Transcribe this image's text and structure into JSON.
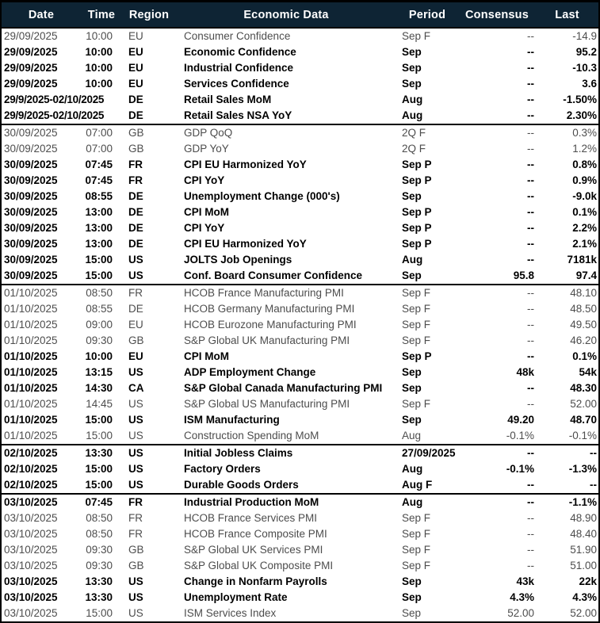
{
  "colors": {
    "header_bg": "#0e2434",
    "header_text": "#ffffff",
    "bold_row_text": "#000000",
    "regular_row_text": "#4d4d4d",
    "border": "#000000"
  },
  "chart_data": {
    "type": "table",
    "columns": [
      "Date",
      "Time",
      "Region",
      "Economic Data",
      "Period",
      "Consensus",
      "Last"
    ],
    "groups": [
      {
        "rows": [
          {
            "date": "29/09/2025",
            "time": "10:00",
            "span": false,
            "region": "EU",
            "event": "Consumer Confidence",
            "period": "Sep F",
            "consensus": "--",
            "last": "-14.9",
            "bold": false
          },
          {
            "date": "29/09/2025",
            "time": "10:00",
            "span": false,
            "region": "EU",
            "event": "Economic Confidence",
            "period": "Sep",
            "consensus": "--",
            "last": "95.2",
            "bold": true
          },
          {
            "date": "29/09/2025",
            "time": "10:00",
            "span": false,
            "region": "EU",
            "event": "Industrial Confidence",
            "period": "Sep",
            "consensus": "--",
            "last": "-10.3",
            "bold": true
          },
          {
            "date": "29/09/2025",
            "time": "10:00",
            "span": false,
            "region": "EU",
            "event": "Services Confidence",
            "period": "Sep",
            "consensus": "--",
            "last": "3.6",
            "bold": true
          },
          {
            "date": "29/9/2025-02/10/2025",
            "time": "",
            "span": true,
            "region": "DE",
            "event": "Retail Sales MoM",
            "period": "Aug",
            "consensus": "--",
            "last": "-1.50%",
            "bold": true
          },
          {
            "date": "29/9/2025-02/10/2025",
            "time": "",
            "span": true,
            "region": "DE",
            "event": "Retail Sales NSA YoY",
            "period": "Aug",
            "consensus": "--",
            "last": "2.30%",
            "bold": true
          }
        ]
      },
      {
        "rows": [
          {
            "date": "30/09/2025",
            "time": "07:00",
            "span": false,
            "region": "GB",
            "event": "GDP QoQ",
            "period": "2Q F",
            "consensus": "--",
            "last": "0.3%",
            "bold": false
          },
          {
            "date": "30/09/2025",
            "time": "07:00",
            "span": false,
            "region": "GB",
            "event": "GDP YoY",
            "period": "2Q F",
            "consensus": "--",
            "last": "1.2%",
            "bold": false
          },
          {
            "date": "30/09/2025",
            "time": "07:45",
            "span": false,
            "region": "FR",
            "event": "CPI EU Harmonized YoY",
            "period": "Sep P",
            "consensus": "--",
            "last": "0.8%",
            "bold": true
          },
          {
            "date": "30/09/2025",
            "time": "07:45",
            "span": false,
            "region": "FR",
            "event": "CPI YoY",
            "period": "Sep P",
            "consensus": "--",
            "last": "0.9%",
            "bold": true
          },
          {
            "date": "30/09/2025",
            "time": "08:55",
            "span": false,
            "region": "DE",
            "event": "Unemployment Change (000's)",
            "period": "Sep",
            "consensus": "--",
            "last": "-9.0k",
            "bold": true
          },
          {
            "date": "30/09/2025",
            "time": "13:00",
            "span": false,
            "region": "DE",
            "event": "CPI MoM",
            "period": "Sep P",
            "consensus": "--",
            "last": "0.1%",
            "bold": true
          },
          {
            "date": "30/09/2025",
            "time": "13:00",
            "span": false,
            "region": "DE",
            "event": "CPI YoY",
            "period": "Sep P",
            "consensus": "--",
            "last": "2.2%",
            "bold": true
          },
          {
            "date": "30/09/2025",
            "time": "13:00",
            "span": false,
            "region": "DE",
            "event": "CPI EU Harmonized YoY",
            "period": "Sep P",
            "consensus": "--",
            "last": "2.1%",
            "bold": true
          },
          {
            "date": "30/09/2025",
            "time": "15:00",
            "span": false,
            "region": "US",
            "event": "JOLTS Job Openings",
            "period": "Aug",
            "consensus": "--",
            "last": "7181k",
            "bold": true
          },
          {
            "date": "30/09/2025",
            "time": "15:00",
            "span": false,
            "region": "US",
            "event": "Conf. Board Consumer Confidence",
            "period": "Sep",
            "consensus": "95.8",
            "last": "97.4",
            "bold": true
          }
        ]
      },
      {
        "rows": [
          {
            "date": "01/10/2025",
            "time": "08:50",
            "span": false,
            "region": "FR",
            "event": "HCOB France Manufacturing PMI",
            "period": "Sep F",
            "consensus": "--",
            "last": "48.10",
            "bold": false
          },
          {
            "date": "01/10/2025",
            "time": "08:55",
            "span": false,
            "region": "DE",
            "event": "HCOB Germany Manufacturing PMI",
            "period": "Sep F",
            "consensus": "--",
            "last": "48.50",
            "bold": false
          },
          {
            "date": "01/10/2025",
            "time": "09:00",
            "span": false,
            "region": "EU",
            "event": "HCOB Eurozone Manufacturing PMI",
            "period": "Sep F",
            "consensus": "--",
            "last": "49.50",
            "bold": false
          },
          {
            "date": "01/10/2025",
            "time": "09:30",
            "span": false,
            "region": "GB",
            "event": "S&P Global UK Manufacturing PMI",
            "period": "Sep F",
            "consensus": "--",
            "last": "46.20",
            "bold": false
          },
          {
            "date": "01/10/2025",
            "time": "10:00",
            "span": false,
            "region": "EU",
            "event": "CPI MoM",
            "period": "Sep P",
            "consensus": "--",
            "last": "0.1%",
            "bold": true
          },
          {
            "date": "01/10/2025",
            "time": "13:15",
            "span": false,
            "region": "US",
            "event": "ADP Employment Change",
            "period": "Sep",
            "consensus": "48k",
            "last": "54k",
            "bold": true
          },
          {
            "date": "01/10/2025",
            "time": "14:30",
            "span": false,
            "region": "CA",
            "event": "S&P Global Canada Manufacturing PMI",
            "period": "Sep",
            "consensus": "--",
            "last": "48.30",
            "bold": true
          },
          {
            "date": "01/10/2025",
            "time": "14:45",
            "span": false,
            "region": "US",
            "event": "S&P Global US Manufacturing PMI",
            "period": "Sep F",
            "consensus": "--",
            "last": "52.00",
            "bold": false
          },
          {
            "date": "01/10/2025",
            "time": "15:00",
            "span": false,
            "region": "US",
            "event": "ISM Manufacturing",
            "period": "Sep",
            "consensus": "49.20",
            "last": "48.70",
            "bold": true
          },
          {
            "date": "01/10/2025",
            "time": "15:00",
            "span": false,
            "region": "US",
            "event": "Construction Spending MoM",
            "period": "Aug",
            "consensus": "-0.1%",
            "last": "-0.1%",
            "bold": false
          }
        ]
      },
      {
        "rows": [
          {
            "date": "02/10/2025",
            "time": "13:30",
            "span": false,
            "region": "US",
            "event": "Initial Jobless Claims",
            "period": "27/09/2025",
            "consensus": "--",
            "last": "--",
            "bold": true
          },
          {
            "date": "02/10/2025",
            "time": "15:00",
            "span": false,
            "region": "US",
            "event": "Factory Orders",
            "period": "Aug",
            "consensus": "-0.1%",
            "last": "-1.3%",
            "bold": true
          },
          {
            "date": "02/10/2025",
            "time": "15:00",
            "span": false,
            "region": "US",
            "event": "Durable Goods Orders",
            "period": "Aug F",
            "consensus": "--",
            "last": "--",
            "bold": true
          }
        ]
      },
      {
        "rows": [
          {
            "date": "03/10/2025",
            "time": "07:45",
            "span": false,
            "region": "FR",
            "event": "Industrial Production MoM",
            "period": "Aug",
            "consensus": "--",
            "last": "-1.1%",
            "bold": true
          },
          {
            "date": "03/10/2025",
            "time": "08:50",
            "span": false,
            "region": "FR",
            "event": "HCOB France Services PMI",
            "period": "Sep F",
            "consensus": "--",
            "last": "48.90",
            "bold": false
          },
          {
            "date": "03/10/2025",
            "time": "08:50",
            "span": false,
            "region": "FR",
            "event": "HCOB France Composite PMI",
            "period": "Sep F",
            "consensus": "--",
            "last": "48.40",
            "bold": false
          },
          {
            "date": "03/10/2025",
            "time": "09:30",
            "span": false,
            "region": "GB",
            "event": "S&P Global UK Services PMI",
            "period": "Sep F",
            "consensus": "--",
            "last": "51.90",
            "bold": false
          },
          {
            "date": "03/10/2025",
            "time": "09:30",
            "span": false,
            "region": "GB",
            "event": "S&P Global UK Composite PMI",
            "period": "Sep F",
            "consensus": "--",
            "last": "51.00",
            "bold": false
          },
          {
            "date": "03/10/2025",
            "time": "13:30",
            "span": false,
            "region": "US",
            "event": "Change in Nonfarm Payrolls",
            "period": "Sep",
            "consensus": "43k",
            "last": "22k",
            "bold": true
          },
          {
            "date": "03/10/2025",
            "time": "13:30",
            "span": false,
            "region": "US",
            "event": "Unemployment Rate",
            "period": "Sep",
            "consensus": "4.3%",
            "last": "4.3%",
            "bold": true
          },
          {
            "date": "03/10/2025",
            "time": "15:00",
            "span": false,
            "region": "US",
            "event": "ISM Services Index",
            "period": "Sep",
            "consensus": "52.00",
            "last": "52.00",
            "bold": false
          }
        ]
      }
    ]
  }
}
